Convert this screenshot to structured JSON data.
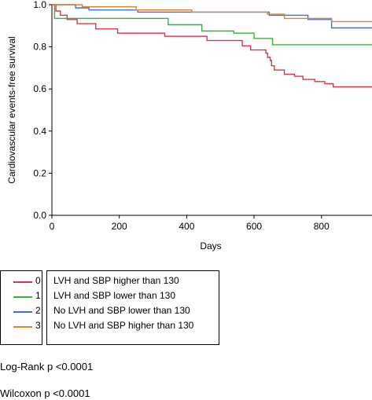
{
  "chart_data": {
    "type": "line",
    "subtype": "kaplan-meier step",
    "xlabel": "Days",
    "ylabel": "Cardiovascular events-free survival",
    "xlim": [
      0,
      950
    ],
    "ylim": [
      0,
      1.0
    ],
    "xticks": [
      0,
      200,
      400,
      600,
      800
    ],
    "yticks": [
      0.0,
      0.2,
      0.4,
      0.6,
      0.8,
      1.0
    ],
    "xtick_labels": [
      "0",
      "200",
      "400",
      "600",
      "800"
    ],
    "ytick_labels": [
      "0.0",
      "0.2",
      "0.4",
      "0.6",
      "0.8",
      "1.0"
    ],
    "grid": false,
    "series": [
      {
        "name": "0",
        "color": "#d1384b",
        "points": [
          [
            0,
            1.0
          ],
          [
            12,
            1.0
          ],
          [
            12,
            0.97
          ],
          [
            25,
            0.97
          ],
          [
            25,
            0.95
          ],
          [
            45,
            0.95
          ],
          [
            45,
            0.93
          ],
          [
            75,
            0.93
          ],
          [
            75,
            0.91
          ],
          [
            130,
            0.91
          ],
          [
            130,
            0.885
          ],
          [
            195,
            0.885
          ],
          [
            195,
            0.865
          ],
          [
            335,
            0.865
          ],
          [
            335,
            0.85
          ],
          [
            460,
            0.85
          ],
          [
            460,
            0.83
          ],
          [
            565,
            0.83
          ],
          [
            565,
            0.805
          ],
          [
            590,
            0.805
          ],
          [
            590,
            0.785
          ],
          [
            635,
            0.785
          ],
          [
            635,
            0.77
          ],
          [
            640,
            0.77
          ],
          [
            640,
            0.75
          ],
          [
            648,
            0.75
          ],
          [
            648,
            0.735
          ],
          [
            652,
            0.735
          ],
          [
            652,
            0.71
          ],
          [
            660,
            0.71
          ],
          [
            660,
            0.69
          ],
          [
            690,
            0.69
          ],
          [
            690,
            0.67
          ],
          [
            720,
            0.67
          ],
          [
            720,
            0.66
          ],
          [
            745,
            0.66
          ],
          [
            745,
            0.645
          ],
          [
            780,
            0.645
          ],
          [
            780,
            0.635
          ],
          [
            810,
            0.635
          ],
          [
            810,
            0.625
          ],
          [
            835,
            0.625
          ],
          [
            835,
            0.61
          ],
          [
            950,
            0.61
          ]
        ]
      },
      {
        "name": "1",
        "color": "#3fae3f",
        "points": [
          [
            0,
            1.0
          ],
          [
            8,
            1.0
          ],
          [
            8,
            0.935
          ],
          [
            345,
            0.935
          ],
          [
            345,
            0.905
          ],
          [
            445,
            0.905
          ],
          [
            445,
            0.875
          ],
          [
            540,
            0.875
          ],
          [
            540,
            0.865
          ],
          [
            600,
            0.865
          ],
          [
            600,
            0.84
          ],
          [
            655,
            0.84
          ],
          [
            655,
            0.81
          ],
          [
            950,
            0.81
          ]
        ]
      },
      {
        "name": "2",
        "color": "#3d6fd9",
        "points": [
          [
            0,
            1.0
          ],
          [
            70,
            1.0
          ],
          [
            70,
            0.985
          ],
          [
            110,
            0.985
          ],
          [
            110,
            0.975
          ],
          [
            255,
            0.975
          ],
          [
            255,
            0.965
          ],
          [
            645,
            0.965
          ],
          [
            645,
            0.95
          ],
          [
            760,
            0.95
          ],
          [
            760,
            0.93
          ],
          [
            830,
            0.93
          ],
          [
            830,
            0.89
          ],
          [
            950,
            0.89
          ]
        ]
      },
      {
        "name": "3",
        "color": "#e08227",
        "points": [
          [
            0,
            1.0
          ],
          [
            90,
            1.0
          ],
          [
            90,
            0.99
          ],
          [
            250,
            0.99
          ],
          [
            250,
            0.975
          ],
          [
            415,
            0.975
          ],
          [
            415,
            0.965
          ],
          [
            640,
            0.965
          ],
          [
            640,
            0.955
          ],
          [
            690,
            0.955
          ],
          [
            690,
            0.935
          ],
          [
            830,
            0.935
          ],
          [
            830,
            0.92
          ],
          [
            950,
            0.92
          ]
        ]
      }
    ]
  },
  "legend": {
    "entries": [
      {
        "key": "0",
        "label": "LVH and SBP higher than 130",
        "color": "#d1384b"
      },
      {
        "key": "1",
        "label": "LVH and SBP lower than 130",
        "color": "#3fae3f"
      },
      {
        "key": "2",
        "label": "No LVH and SBP lower than 130",
        "color": "#3d6fd9"
      },
      {
        "key": "3",
        "label": "No LVH and SBP higher than 130",
        "color": "#e08227"
      }
    ]
  },
  "stats": {
    "logrank": "Log-Rank p <0.0001",
    "wilcoxon": "Wilcoxon p <0.0001"
  }
}
